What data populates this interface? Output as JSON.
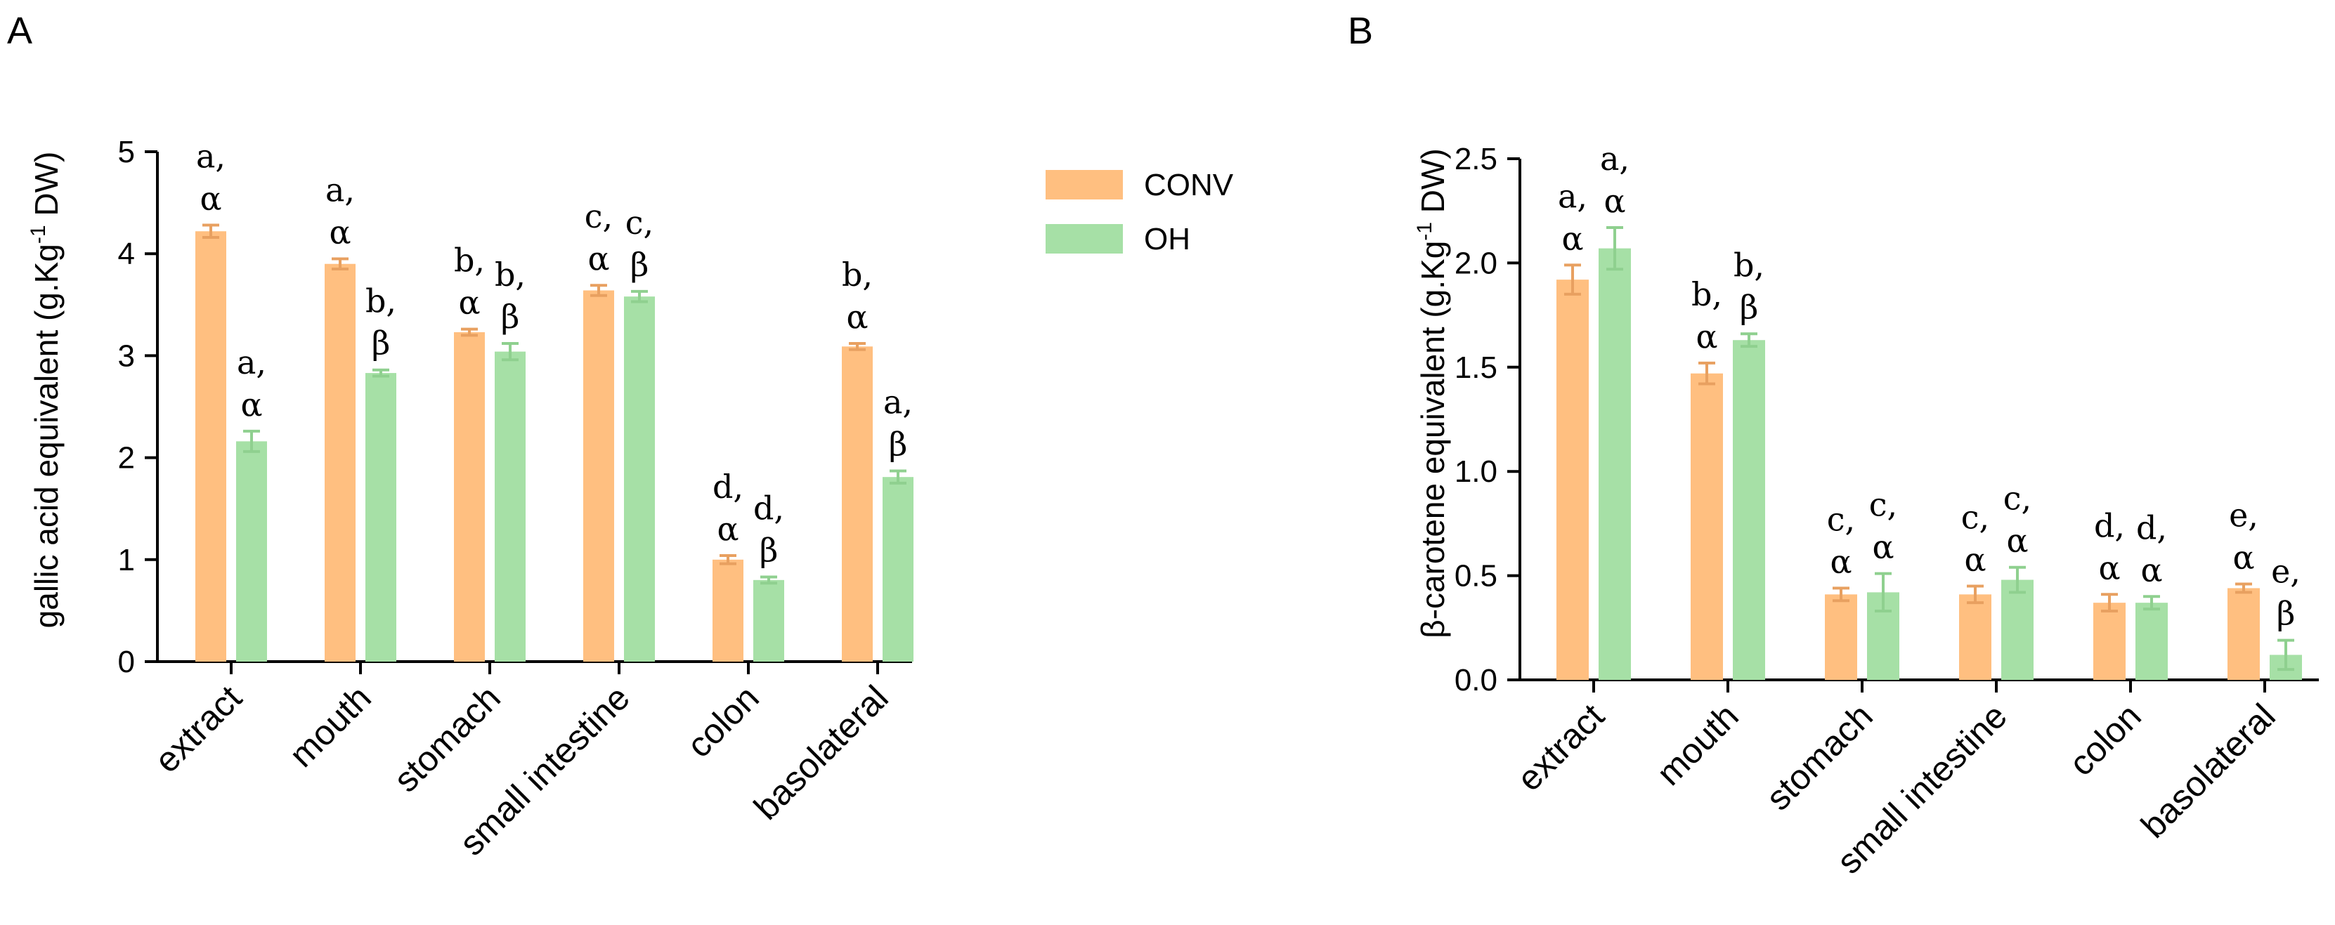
{
  "colors": {
    "conv": "#FFBF80",
    "oh": "#A6E0A6",
    "conv_err": "#E8A060",
    "oh_err": "#8FD08F"
  },
  "legend": {
    "entries": [
      {
        "name": "CONV"
      },
      {
        "name": "OH"
      }
    ]
  },
  "chart_data": [
    {
      "type": "bar",
      "panel": "A",
      "ylabel_parts": [
        "gallic acid  equivalent (g.Kg",
        "-1",
        " DW)"
      ],
      "categories": [
        "extract",
        "mouth",
        "stomach",
        "small intestine",
        "colon",
        "basolateral"
      ],
      "ylim": [
        0,
        5
      ],
      "yticks": [
        "0",
        "1",
        "2",
        "3",
        "4",
        "5"
      ],
      "series": [
        {
          "name": "CONV",
          "values": [
            4.22,
            3.9,
            3.23,
            3.64,
            1.0,
            3.09
          ],
          "errors": [
            0.06,
            0.05,
            0.03,
            0.05,
            0.04,
            0.03
          ],
          "letters": [
            "a,",
            "a,",
            "b,",
            "c,",
            "d,",
            "b,"
          ],
          "greek": [
            "α",
            "α",
            "α",
            "α",
            "α",
            "α"
          ]
        },
        {
          "name": "OH",
          "values": [
            2.16,
            2.83,
            3.04,
            3.58,
            0.8,
            1.81
          ],
          "errors": [
            0.1,
            0.03,
            0.08,
            0.05,
            0.03,
            0.06
          ],
          "letters": [
            "a,",
            "b,",
            "b,",
            "c,",
            "d,",
            "a,"
          ],
          "greek": [
            "α",
            "β",
            "β",
            "β",
            "β",
            "β"
          ]
        }
      ]
    },
    {
      "type": "bar",
      "panel": "B",
      "ylabel_parts": [
        "β-carotene equivalent (g.Kg",
        "-1",
        " DW)"
      ],
      "categories": [
        "extract",
        "mouth",
        "stomach",
        "small intestine",
        "colon",
        "basolateral"
      ],
      "ylim": [
        0,
        2.5
      ],
      "yticks": [
        "0.0",
        "0.5",
        "1.0",
        "1.5",
        "2.0",
        "2.5"
      ],
      "series": [
        {
          "name": "CONV",
          "values": [
            1.92,
            1.47,
            0.41,
            0.41,
            0.37,
            0.44
          ],
          "errors": [
            0.07,
            0.05,
            0.03,
            0.04,
            0.04,
            0.02
          ],
          "letters": [
            "a,",
            "b,",
            "c,",
            "c,",
            "d,",
            "e,"
          ],
          "greek": [
            "α",
            "α",
            "α",
            "α",
            "α",
            "α"
          ]
        },
        {
          "name": "OH",
          "values": [
            2.07,
            1.63,
            0.42,
            0.48,
            0.37,
            0.12
          ],
          "errors": [
            0.1,
            0.03,
            0.09,
            0.06,
            0.03,
            0.07
          ],
          "letters": [
            "a,",
            "b,",
            "c,",
            "c,",
            "d,",
            "e,"
          ],
          "greek": [
            "α",
            "β",
            "α",
            "α",
            "α",
            "β"
          ]
        }
      ]
    }
  ]
}
